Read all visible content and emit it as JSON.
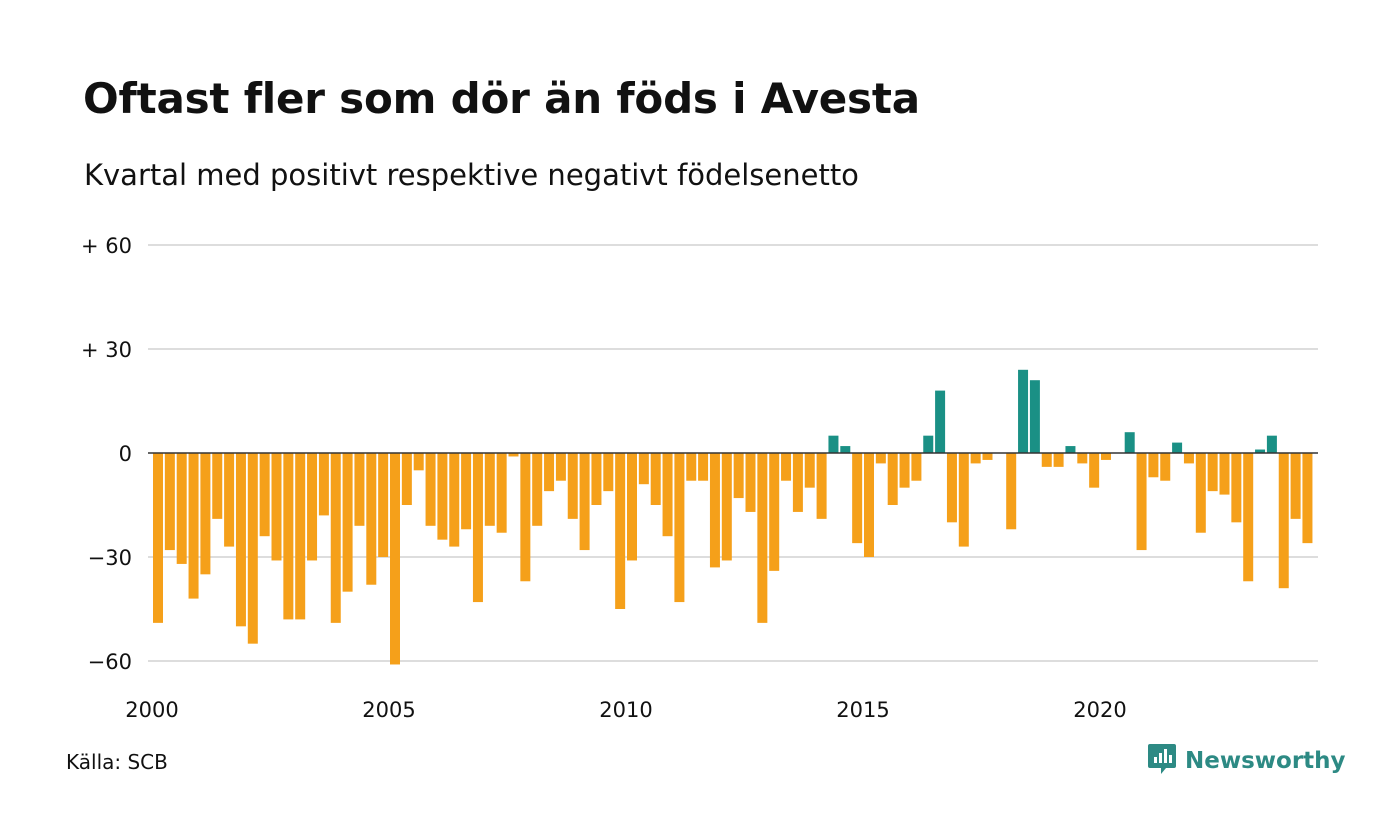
{
  "title": "Oftast fler som dör än föds i Avesta",
  "subtitle": "Kvartal med positivt respektive negativt födelsenetto",
  "source": "Källa: SCB",
  "brand": {
    "name": "Newsworthy",
    "icon": "newsworthy-logo-icon",
    "color": "#2d8a84"
  },
  "colors": {
    "positive": "#1a9085",
    "negative": "#f5a01a",
    "grid": "#dddddd",
    "zero_line": "#333333"
  },
  "chart_data": {
    "type": "bar",
    "title": "Oftast fler som dör än föds i Avesta",
    "subtitle": "Kvartal med positivt respektive negativt födelsenetto",
    "ylim": [
      -60,
      60
    ],
    "grid": true,
    "y_ticks": [
      {
        "value": 60,
        "label": "+ 60"
      },
      {
        "value": 30,
        "label": "+ 30"
      },
      {
        "value": 0,
        "label": "0"
      },
      {
        "value": -30,
        "label": "−30"
      },
      {
        "value": -60,
        "label": "−60"
      }
    ],
    "x_ticks": [
      {
        "value": 2000,
        "label": "2000"
      },
      {
        "value": 2005,
        "label": "2005"
      },
      {
        "value": 2010,
        "label": "2010"
      },
      {
        "value": 2015,
        "label": "2015"
      },
      {
        "value": 2020,
        "label": "2020"
      }
    ],
    "start_year": 2000,
    "values": [
      -49,
      -28,
      -32,
      -42,
      -35,
      -19,
      -27,
      -50,
      -55,
      -24,
      -31,
      -48,
      -48,
      -31,
      -18,
      -49,
      -40,
      -21,
      -38,
      -30,
      -61,
      -15,
      -5,
      -21,
      -25,
      -27,
      -22,
      -43,
      -21,
      -23,
      -1,
      -37,
      -21,
      -11,
      -8,
      -19,
      -28,
      -15,
      -11,
      -45,
      -31,
      -9,
      -15,
      -24,
      -43,
      -8,
      -8,
      -33,
      -31,
      -13,
      -17,
      -49,
      -34,
      -8,
      -17,
      -10,
      -19,
      5,
      2,
      -26,
      -30,
      -3,
      -15,
      -10,
      -8,
      5,
      18,
      -20,
      -27,
      -3,
      -2,
      0,
      -22,
      24,
      21,
      -4,
      -4,
      2,
      -3,
      -10,
      -2,
      0,
      6,
      -28,
      -7,
      -8,
      3,
      -3,
      -23,
      -11,
      -12,
      -20,
      -37,
      1,
      5,
      -39,
      -19,
      -26
    ]
  }
}
